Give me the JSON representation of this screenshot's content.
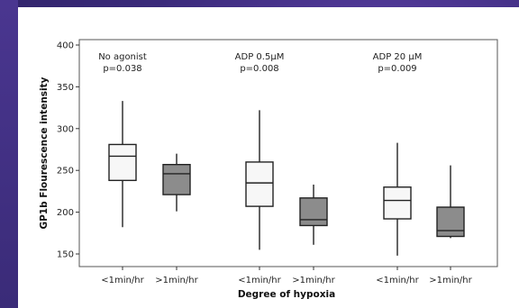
{
  "chart_data": {
    "type": "box",
    "xlabel": "Degree of hypoxia",
    "ylabel": "GP1b Flourescence intensity",
    "ylim": [
      140,
      405
    ],
    "yticks": [
      150,
      200,
      250,
      300,
      350,
      400
    ],
    "grid": false,
    "colors": {
      "light": "#f7f7f7",
      "dark": "#8c8c8c",
      "stroke": "#222222"
    },
    "groups": [
      {
        "title": "No agonist",
        "pvalue": "p=0.038",
        "boxes": [
          {
            "label": "<1min/hr",
            "fill": "light",
            "min": 182,
            "q1": 238,
            "median": 267,
            "q3": 281,
            "max": 333
          },
          {
            "label": ">1min/hr",
            "fill": "dark",
            "min": 201,
            "q1": 221,
            "median": 246,
            "q3": 257,
            "max": 270
          }
        ]
      },
      {
        "title": "ADP 0.5µM",
        "pvalue": "p=0.008",
        "boxes": [
          {
            "label": "<1min/hr",
            "fill": "light",
            "min": 155,
            "q1": 207,
            "median": 235,
            "q3": 260,
            "max": 322
          },
          {
            "label": ">1min/hr",
            "fill": "dark",
            "min": 161,
            "q1": 184,
            "median": 191,
            "q3": 217,
            "max": 233
          }
        ]
      },
      {
        "title": "ADP 20 µM",
        "pvalue": "p=0.009",
        "boxes": [
          {
            "label": "<1min/hr",
            "fill": "light",
            "min": 148,
            "q1": 192,
            "median": 214,
            "q3": 230,
            "max": 283
          },
          {
            "label": ">1min/hr",
            "fill": "dark",
            "min": 169,
            "q1": 171,
            "median": 178,
            "q3": 206,
            "max": 256
          }
        ]
      }
    ]
  }
}
